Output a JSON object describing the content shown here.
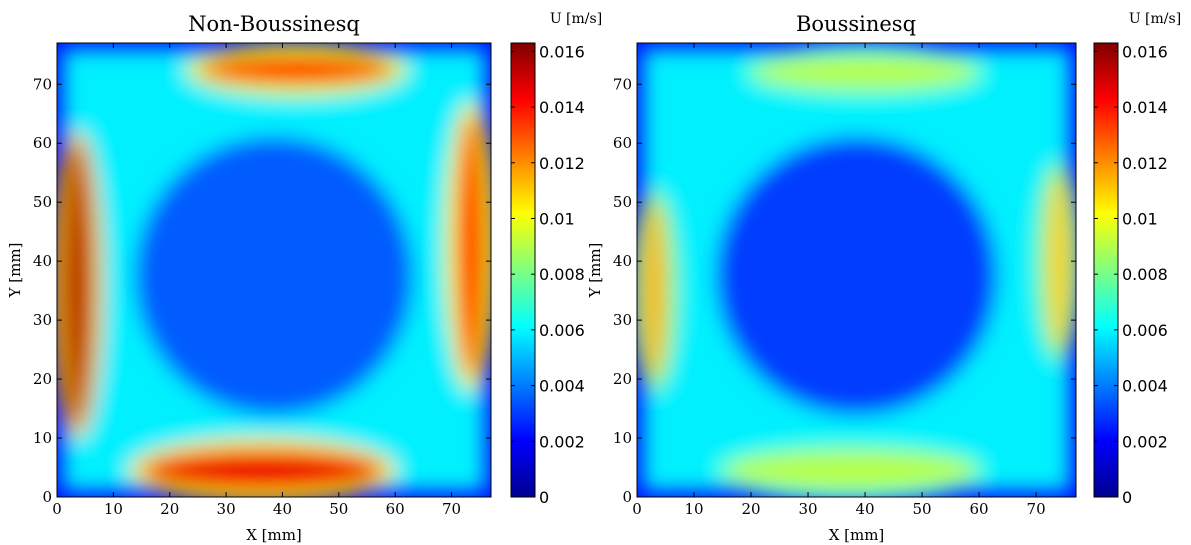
{
  "chart_data": [
    {
      "type": "heatmap",
      "title": "Non-Boussinesq",
      "xlabel": "X [mm]",
      "ylabel": "Y [mm]",
      "xlim": [
        0,
        77
      ],
      "ylim": [
        0,
        77
      ],
      "xticks": [
        0,
        10,
        20,
        30,
        40,
        50,
        60,
        70
      ],
      "yticks": [
        0,
        10,
        20,
        30,
        40,
        50,
        60,
        70
      ],
      "colorbar": {
        "label": "U [m/s]",
        "range": [
          0,
          0.0163
        ],
        "ticks": [
          "0",
          "0.002",
          "0.004",
          "0.006",
          "0.008",
          "0.01",
          "0.012",
          "0.014",
          "0.016"
        ],
        "colormap": "jet"
      },
      "regions": [
        {
          "name": "bottom wall jet",
          "x_range": [
            15,
            58
          ],
          "y_range": [
            1,
            8
          ],
          "peak_value": 0.0145
        },
        {
          "name": "top wall jet",
          "x_range": [
            25,
            60
          ],
          "y_range": [
            70,
            75
          ],
          "peak_value": 0.0135
        },
        {
          "name": "left wall jet",
          "x_range": [
            1,
            6
          ],
          "y_range": [
            12,
            60
          ],
          "peak_value": 0.0155
        },
        {
          "name": "right wall jet",
          "x_range": [
            71,
            76
          ],
          "y_range": [
            20,
            65
          ],
          "peak_value": 0.014
        },
        {
          "name": "core",
          "x_range": [
            15,
            62
          ],
          "y_range": [
            15,
            60
          ],
          "peak_value": 0.0035
        }
      ]
    },
    {
      "type": "heatmap",
      "title": "Boussinesq",
      "xlabel": "X [mm]",
      "ylabel": "Y [mm]",
      "xlim": [
        0,
        77
      ],
      "ylim": [
        0,
        77
      ],
      "xticks": [
        0,
        10,
        20,
        30,
        40,
        50,
        60,
        70
      ],
      "yticks": [
        0,
        10,
        20,
        30,
        40,
        50,
        60,
        70
      ],
      "colorbar": {
        "label": "U [m/s]",
        "range": [
          0,
          0.0163
        ],
        "ticks": [
          "0",
          "0.002",
          "0.004",
          "0.006",
          "0.008",
          "0.01",
          "0.012",
          "0.014",
          "0.016"
        ],
        "colormap": "jet"
      },
      "regions": [
        {
          "name": "bottom wall jet",
          "x_range": [
            15,
            60
          ],
          "y_range": [
            1,
            8
          ],
          "peak_value": 0.009
        },
        {
          "name": "top wall jet",
          "x_range": [
            20,
            60
          ],
          "y_range": [
            69,
            75
          ],
          "peak_value": 0.009
        },
        {
          "name": "left wall jet",
          "x_range": [
            1,
            5
          ],
          "y_range": [
            20,
            50
          ],
          "peak_value": 0.0115
        },
        {
          "name": "right wall jet",
          "x_range": [
            72,
            76
          ],
          "y_range": [
            25,
            55
          ],
          "peak_value": 0.011
        },
        {
          "name": "core",
          "x_range": [
            15,
            62
          ],
          "y_range": [
            15,
            60
          ],
          "peak_value": 0.003
        }
      ]
    }
  ]
}
